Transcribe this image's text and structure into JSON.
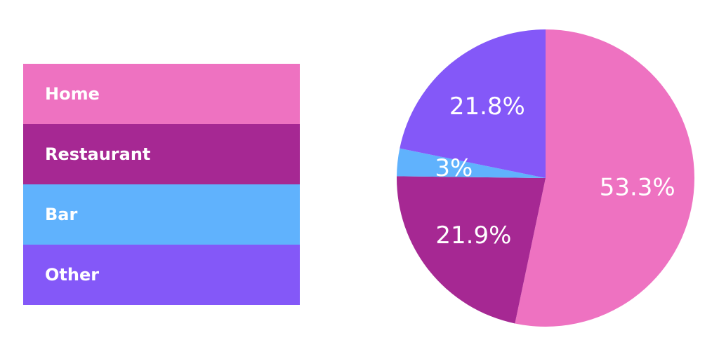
{
  "chart_data": {
    "type": "pie",
    "title": "",
    "categories": [
      "Home",
      "Restaurant",
      "Bar",
      "Other"
    ],
    "values": [
      53.3,
      21.9,
      3,
      21.8
    ],
    "value_labels": [
      "53.3%",
      "21.9%",
      "3%",
      "21.8%"
    ],
    "colors": [
      "#ee72c1",
      "#a62893",
      "#60b2fd",
      "#8458f8"
    ],
    "start_angle_deg": 0,
    "direction": "clockwise",
    "legend_placement": "left",
    "grid": false
  }
}
